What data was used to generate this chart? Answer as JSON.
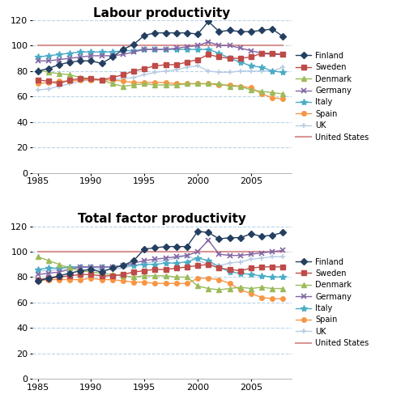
{
  "years": [
    1985,
    1986,
    1987,
    1988,
    1989,
    1990,
    1991,
    1992,
    1993,
    1994,
    1995,
    1996,
    1997,
    1998,
    1999,
    2000,
    2001,
    2002,
    2003,
    2004,
    2005,
    2006,
    2007,
    2008
  ],
  "labour": {
    "Finland": [
      80,
      82,
      85,
      87,
      88,
      88,
      86,
      91,
      97,
      101,
      108,
      110,
      110,
      110,
      110,
      109,
      119,
      111,
      112,
      111,
      111,
      112,
      113,
      107
    ],
    "Sweden": [
      73,
      72,
      70,
      73,
      74,
      74,
      73,
      75,
      77,
      80,
      82,
      84,
      85,
      85,
      87,
      89,
      93,
      91,
      90,
      90,
      91,
      94,
      94,
      93
    ],
    "Denmark": [
      81,
      79,
      78,
      77,
      75,
      74,
      73,
      70,
      68,
      69,
      70,
      69,
      69,
      69,
      70,
      70,
      70,
      70,
      68,
      68,
      65,
      64,
      63,
      62
    ],
    "Germany": [
      88,
      88,
      89,
      90,
      91,
      92,
      92,
      92,
      93,
      95,
      97,
      97,
      97,
      98,
      99,
      100,
      103,
      100,
      100,
      98,
      96,
      94,
      93,
      93
    ],
    "Italy": [
      91,
      92,
      93,
      94,
      95,
      95,
      95,
      95,
      96,
      96,
      97,
      97,
      97,
      97,
      97,
      97,
      97,
      94,
      90,
      87,
      84,
      83,
      80,
      79
    ],
    "Spain": [
      70,
      71,
      72,
      72,
      73,
      73,
      73,
      73,
      72,
      71,
      71,
      71,
      71,
      70,
      70,
      70,
      70,
      69,
      69,
      68,
      67,
      62,
      59,
      58
    ],
    "UK": [
      65,
      66,
      68,
      70,
      72,
      73,
      73,
      73,
      74,
      75,
      77,
      79,
      80,
      81,
      83,
      84,
      80,
      79,
      79,
      80,
      80,
      80,
      80,
      83
    ],
    "United States": [
      100,
      100,
      100,
      100,
      100,
      100,
      100,
      100,
      100,
      100,
      100,
      100,
      100,
      100,
      100,
      100,
      100,
      100,
      100,
      100,
      100,
      100,
      100,
      100
    ]
  },
  "tfp": {
    "Finland": [
      77,
      79,
      81,
      83,
      85,
      86,
      84,
      87,
      89,
      93,
      102,
      103,
      104,
      104,
      104,
      116,
      115,
      110,
      111,
      111,
      114,
      112,
      113,
      115
    ],
    "Sweden": [
      78,
      79,
      80,
      81,
      82,
      82,
      81,
      81,
      82,
      84,
      85,
      86,
      86,
      87,
      88,
      89,
      90,
      87,
      86,
      85,
      87,
      88,
      88,
      88
    ],
    "Denmark": [
      96,
      93,
      90,
      87,
      85,
      84,
      83,
      82,
      81,
      80,
      81,
      81,
      81,
      80,
      80,
      73,
      71,
      70,
      71,
      72,
      71,
      72,
      71,
      71
    ],
    "Germany": [
      82,
      83,
      84,
      86,
      88,
      88,
      88,
      88,
      89,
      91,
      93,
      94,
      95,
      96,
      97,
      100,
      109,
      98,
      97,
      97,
      98,
      99,
      100,
      101
    ],
    "Italy": [
      86,
      87,
      87,
      88,
      88,
      88,
      88,
      88,
      89,
      89,
      90,
      90,
      91,
      91,
      92,
      95,
      93,
      88,
      84,
      83,
      82,
      81,
      80,
      80
    ],
    "Spain": [
      77,
      78,
      78,
      78,
      78,
      79,
      78,
      78,
      77,
      76,
      76,
      75,
      75,
      75,
      75,
      79,
      79,
      78,
      75,
      70,
      67,
      64,
      63,
      63
    ],
    "UK": [
      85,
      85,
      86,
      87,
      88,
      87,
      86,
      86,
      87,
      89,
      91,
      92,
      93,
      95,
      97,
      93,
      90,
      89,
      91,
      92,
      94,
      95,
      96,
      96
    ],
    "United States": [
      100,
      100,
      100,
      100,
      100,
      100,
      100,
      100,
      100,
      100,
      100,
      100,
      100,
      100,
      100,
      100,
      100,
      100,
      100,
      100,
      100,
      100,
      100,
      100
    ]
  },
  "colors": {
    "Finland": "#243F60",
    "Sweden": "#BE4B48",
    "Denmark": "#9BBB59",
    "Germany": "#8064A2",
    "Italy": "#4BACC6",
    "Spain": "#F79646",
    "UK": "#B8CCE4",
    "United States": "#D99694"
  },
  "markers": {
    "Finland": "D",
    "Sweden": "s",
    "Denmark": "^",
    "Germany": "x",
    "Italy": "*",
    "Spain": "o",
    "UK": "+",
    "United States": null
  },
  "markersizes": {
    "Finland": 4,
    "Sweden": 4,
    "Denmark": 4,
    "Germany": 5,
    "Italy": 6,
    "Spain": 4,
    "UK": 5,
    "United States": 0
  },
  "title1": "Labour productivity",
  "title2": "Total factor productivity",
  "ylim": [
    0,
    120
  ],
  "yticks": [
    0,
    20,
    40,
    60,
    80,
    100,
    120
  ],
  "xlim": [
    1984.5,
    2008.8
  ],
  "xticks": [
    1985,
    1990,
    1995,
    2000,
    2005
  ]
}
